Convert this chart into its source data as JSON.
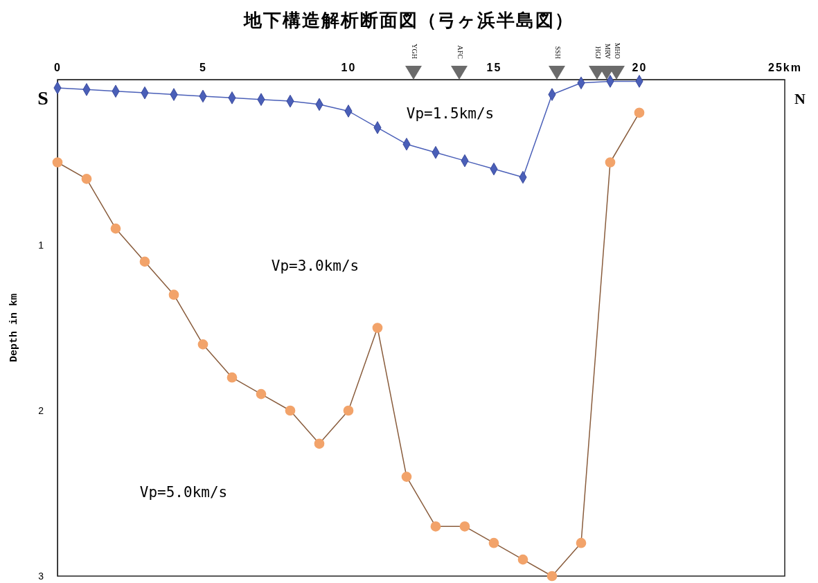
{
  "chart_data": {
    "type": "line",
    "title": "地下構造解析断面図（弓ヶ浜半島図）",
    "ylabel": "Depth in km",
    "x": [
      0,
      1,
      2,
      3,
      4,
      5,
      6,
      7,
      8,
      9,
      10,
      11,
      12,
      13,
      14,
      15,
      16,
      17,
      18,
      19,
      20
    ],
    "series": [
      {
        "color": "#4a5fb8",
        "marker": "diamond",
        "values": [
          0.05,
          0.06,
          0.07,
          0.08,
          0.09,
          0.1,
          0.11,
          0.12,
          0.13,
          0.15,
          0.19,
          0.29,
          0.39,
          0.44,
          0.49,
          0.54,
          0.59,
          0.09,
          0.02,
          0.01,
          0.01
        ]
      },
      {
        "color": "#f2a36a",
        "marker": "circle",
        "values": [
          0.5,
          0.6,
          0.9,
          1.1,
          1.3,
          1.6,
          1.8,
          1.9,
          2.0,
          2.2,
          2.0,
          1.5,
          2.4,
          2.7,
          2.7,
          2.8,
          2.9,
          3.0,
          2.8,
          0.5,
          0.2
        ]
      }
    ],
    "xlim": [
      0,
      25
    ],
    "xticks": [
      0,
      5,
      10,
      15,
      20,
      {
        "value": 25,
        "label": "25km"
      }
    ],
    "ylim": [
      3,
      0
    ],
    "yticks": [
      1,
      2,
      3
    ],
    "annotations": [
      "S",
      "N",
      "Vp=1.5km/s",
      "Vp=3.0km/s",
      "Vp=5.0km/s",
      "YGH",
      "AFC",
      "SSH",
      "HGJ",
      "MRV",
      "MHO"
    ],
    "grid": false
  }
}
